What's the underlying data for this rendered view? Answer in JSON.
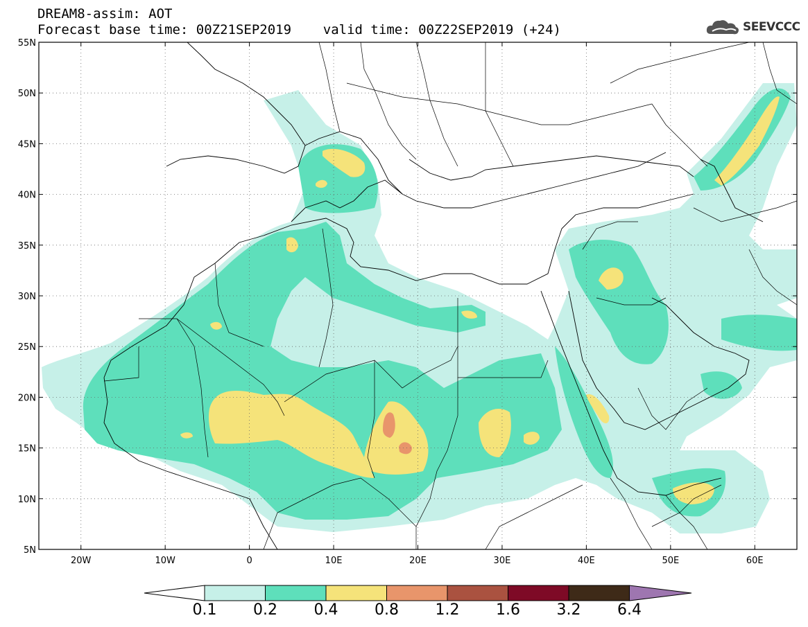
{
  "header": {
    "title_line1": "DREAM8-assim: AOT",
    "title_line2": "Forecast base time: 00Z21SEP2019    valid time: 00Z22SEP2019 (+24)"
  },
  "logo": {
    "text": "SEEVCCC",
    "icon": "cloud-icon"
  },
  "map": {
    "lat_ticks": [
      "55N",
      "50N",
      "45N",
      "40N",
      "35N",
      "30N",
      "25N",
      "20N",
      "15N",
      "10N",
      "5N"
    ],
    "lon_ticks": [
      "20W",
      "10W",
      "0",
      "10E",
      "20E",
      "30E",
      "40E",
      "50E",
      "60E"
    ],
    "extent": {
      "lon": [
        -25,
        65
      ],
      "lat": [
        5,
        55
      ]
    }
  },
  "colorbar": {
    "labels": [
      "0.1",
      "0.2",
      "0.4",
      "0.8",
      "1.2",
      "1.6",
      "3.2",
      "6.4"
    ],
    "colors": [
      "#ffffff",
      "#c6f0e8",
      "#5edfbb",
      "#f5e37a",
      "#e8956b",
      "#aa5240",
      "#7e0a26",
      "#3e2a18",
      "#9e76b0"
    ]
  },
  "field_colors": {
    "level1": "#c6f0e8",
    "level2": "#5edfbb",
    "level3": "#f5e37a",
    "level4": "#e8956b",
    "level5": "#d27268"
  }
}
